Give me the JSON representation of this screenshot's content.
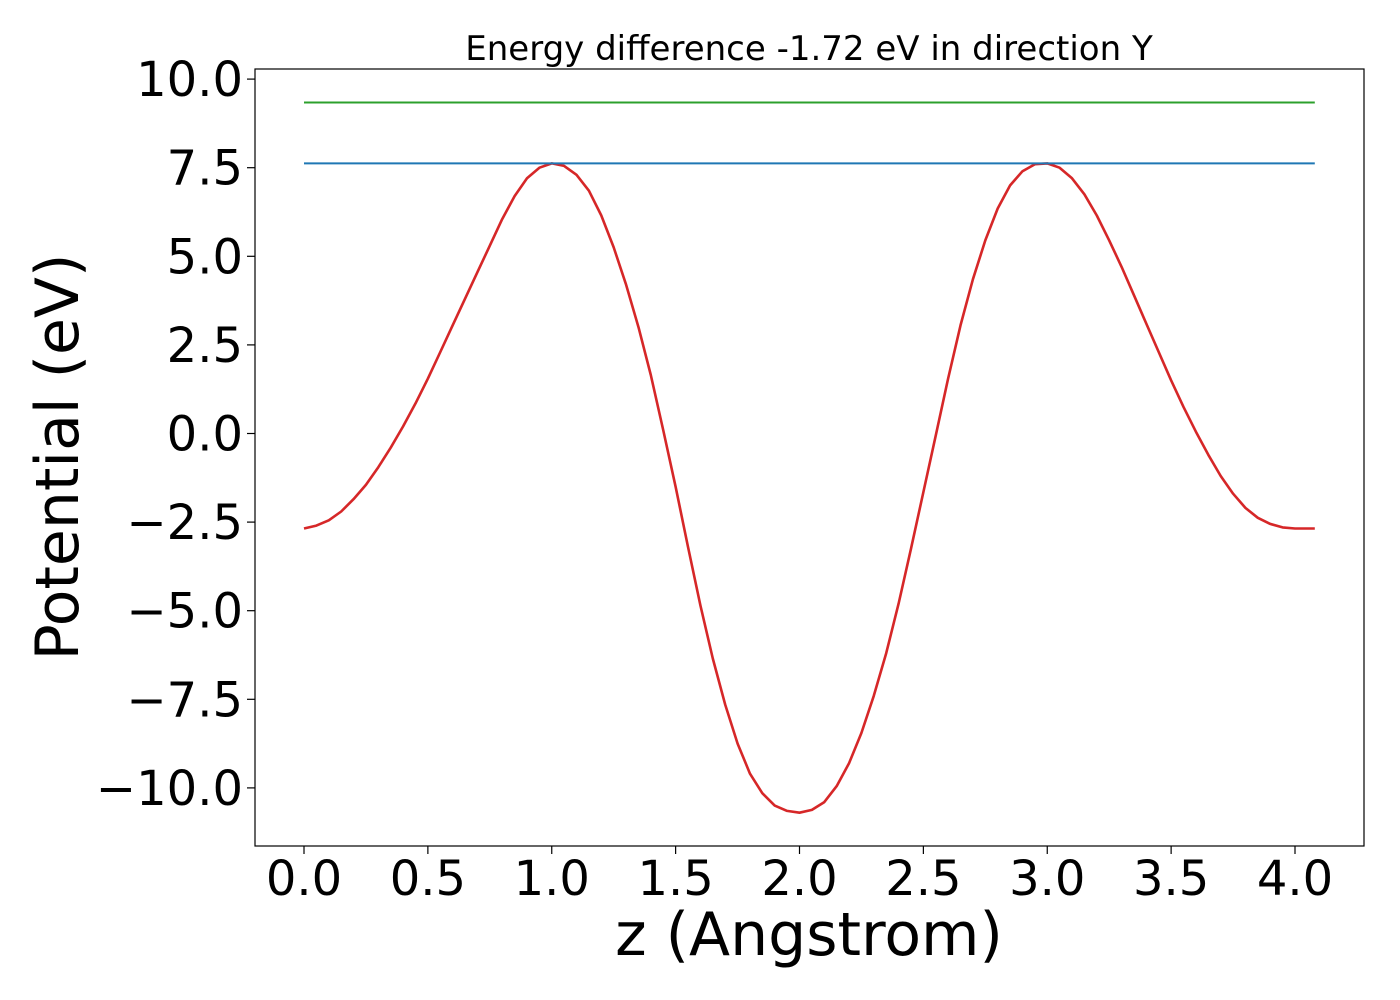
{
  "chart_data": {
    "type": "line",
    "title": "Energy difference -1.72 eV in direction Y",
    "xlabel": "z (Angstrom)",
    "ylabel": "Potential (eV)",
    "xlim": [
      -0.2,
      4.3
    ],
    "ylim": [
      -11.6,
      10.4
    ],
    "xticks": [
      0.0,
      0.5,
      1.0,
      1.5,
      2.0,
      2.5,
      3.0,
      3.5,
      4.0
    ],
    "xtick_labels": [
      "0.0",
      "0.5",
      "1.0",
      "1.5",
      "2.0",
      "2.5",
      "3.0",
      "3.5",
      "4.0"
    ],
    "yticks": [
      10.0,
      7.5,
      5.0,
      2.5,
      0.0,
      -2.5,
      -5.0,
      -7.5,
      -10.0
    ],
    "ytick_labels": [
      "10.0",
      "7.5",
      "5.0",
      "2.5",
      "0.0",
      "−2.5",
      "−5.0",
      "−7.5",
      "−10.0"
    ],
    "grid": false,
    "series": [
      {
        "color": "#d62728",
        "style": "curve",
        "x": [
          0.0,
          0.05,
          0.1,
          0.15,
          0.2,
          0.25,
          0.3,
          0.35,
          0.4,
          0.45,
          0.5,
          0.55,
          0.6,
          0.65,
          0.7,
          0.75,
          0.8,
          0.85,
          0.9,
          0.95,
          1.0,
          1.05,
          1.1,
          1.15,
          1.2,
          1.25,
          1.3,
          1.35,
          1.4,
          1.45,
          1.5,
          1.55,
          1.6,
          1.65,
          1.7,
          1.75,
          1.8,
          1.85,
          1.9,
          1.95,
          2.0,
          2.05,
          2.1,
          2.15,
          2.2,
          2.25,
          2.3,
          2.35,
          2.4,
          2.45,
          2.5,
          2.55,
          2.6,
          2.65,
          2.7,
          2.75,
          2.8,
          2.85,
          2.9,
          2.95,
          3.0,
          3.05,
          3.1,
          3.15,
          3.2,
          3.25,
          3.3,
          3.35,
          3.4,
          3.45,
          3.5,
          3.55,
          3.6,
          3.65,
          3.7,
          3.75,
          3.8,
          3.85,
          3.9,
          3.95,
          4.0,
          4.05,
          4.08
        ],
        "y": [
          -2.68,
          -2.6,
          -2.45,
          -2.2,
          -1.85,
          -1.45,
          -0.95,
          -0.4,
          0.2,
          0.85,
          1.55,
          2.3,
          3.05,
          3.8,
          4.55,
          5.3,
          6.05,
          6.7,
          7.2,
          7.5,
          7.62,
          7.55,
          7.3,
          6.85,
          6.15,
          5.25,
          4.2,
          3.0,
          1.65,
          0.1,
          -1.5,
          -3.2,
          -4.85,
          -6.35,
          -7.65,
          -8.75,
          -9.6,
          -10.15,
          -10.5,
          -10.65,
          -10.7,
          -10.62,
          -10.4,
          -9.95,
          -9.3,
          -8.45,
          -7.4,
          -6.2,
          -4.8,
          -3.25,
          -1.65,
          -0.05,
          1.55,
          3.05,
          4.35,
          5.45,
          6.35,
          7.0,
          7.4,
          7.6,
          7.62,
          7.5,
          7.2,
          6.75,
          6.15,
          5.45,
          4.7,
          3.9,
          3.1,
          2.3,
          1.5,
          0.75,
          0.05,
          -0.6,
          -1.2,
          -1.7,
          -2.1,
          -2.38,
          -2.55,
          -2.65,
          -2.68,
          -2.68,
          -2.68
        ]
      },
      {
        "color": "#1f77b4",
        "style": "hline",
        "x": [
          0.0,
          4.08
        ],
        "y": [
          7.62,
          7.62
        ]
      },
      {
        "color": "#2ca02c",
        "style": "hline",
        "x": [
          0.0,
          4.08
        ],
        "y": [
          9.34,
          9.34
        ]
      }
    ]
  }
}
